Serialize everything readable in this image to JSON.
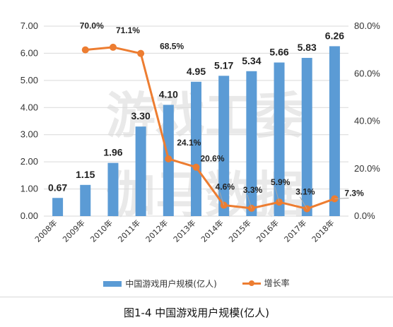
{
  "caption": "图1-4 中国游戏用户规模(亿人)",
  "watermark": [
    "游戏工委",
    "伽马数据"
  ],
  "colors": {
    "bar": "#5b9bd5",
    "line": "#ed7d31",
    "grid": "#d9d9d9",
    "axis_text": "#333333"
  },
  "chart_data": {
    "type": "bar",
    "categories": [
      "2008年",
      "2009年",
      "2010年",
      "2011年",
      "2012年",
      "2013年",
      "2014年",
      "2015年",
      "2016年",
      "2017年",
      "2018年"
    ],
    "series": [
      {
        "name": "中国游戏用户规模(亿人)",
        "type": "bar",
        "axis": "left",
        "values": [
          0.67,
          1.15,
          1.96,
          3.3,
          4.1,
          4.95,
          5.17,
          5.34,
          5.66,
          5.83,
          6.26
        ],
        "labels": [
          "0.67",
          "1.15",
          "1.96",
          "3.30",
          "4.10",
          "4.95",
          "5.17",
          "5.34",
          "5.66",
          "5.83",
          "6.26"
        ]
      },
      {
        "name": "增长率",
        "type": "line",
        "axis": "right",
        "values": [
          null,
          70.0,
          71.1,
          68.5,
          24.1,
          20.6,
          4.6,
          3.3,
          5.9,
          3.1,
          7.3
        ],
        "labels": [
          null,
          "70.0%",
          "71.1%",
          "68.5%",
          "24.1%",
          "20.6%",
          "4.6%",
          "3.3%",
          "5.9%",
          "3.1%",
          "7.3%"
        ]
      }
    ],
    "ylim": [
      0,
      7
    ],
    "yticks": [
      "0.00",
      "1.00",
      "2.00",
      "3.00",
      "4.00",
      "5.00",
      "6.00",
      "7.00"
    ],
    "y2lim": [
      0,
      80
    ],
    "y2ticks": [
      "0.0%",
      "20.0%",
      "40.0%",
      "60.0%",
      "80.0%"
    ],
    "grid": true,
    "legend": "bottom"
  }
}
